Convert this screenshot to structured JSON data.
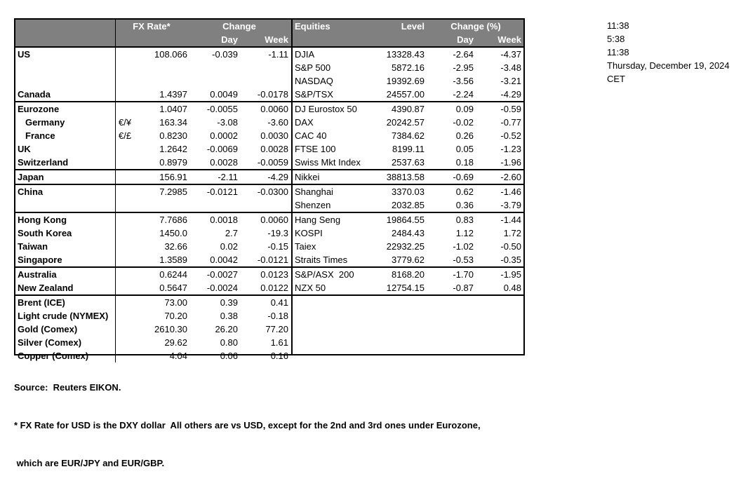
{
  "colors": {
    "bg": "#ffffff",
    "text": "#000000",
    "border": "#000000",
    "header_bg": "#808080",
    "header_text": "#ffffff"
  },
  "meta": {
    "timestamps": [
      "11:38",
      "5:38",
      "11:38",
      "Thursday, December 19, 2024",
      "CET"
    ]
  },
  "fx_table": {
    "header": {
      "rate": "FX Rate*",
      "change": "Change",
      "day": "Day",
      "week": "Week"
    },
    "rows": [
      {
        "name": "US",
        "pair": "",
        "rate": "108.066",
        "day": "-0.039",
        "week": "-1.11",
        "line_above": false,
        "indent": false
      },
      {
        "name": "",
        "pair": "",
        "rate": "",
        "day": "",
        "week": "",
        "line_above": false,
        "indent": false
      },
      {
        "name": "",
        "pair": "",
        "rate": "",
        "day": "",
        "week": "",
        "line_above": false,
        "indent": false
      },
      {
        "name": "Canada",
        "pair": "",
        "rate": "1.4397",
        "day": "0.0049",
        "week": "-0.0178",
        "line_above": false,
        "indent": false
      },
      {
        "name": "Eurozone",
        "pair": "",
        "rate": "1.0407",
        "day": "-0.0055",
        "week": "0.0060",
        "line_above": true,
        "indent": false
      },
      {
        "name": "Germany",
        "pair": "€/¥",
        "rate": "163.34",
        "day": "-3.08",
        "week": "-3.60",
        "line_above": false,
        "indent": true
      },
      {
        "name": "France",
        "pair": "€/£",
        "rate": "0.8230",
        "day": "0.0002",
        "week": "0.0030",
        "line_above": false,
        "indent": true
      },
      {
        "name": "UK",
        "pair": "",
        "rate": "1.2642",
        "day": "-0.0069",
        "week": "0.0028",
        "line_above": false,
        "indent": false
      },
      {
        "name": "Switzerland",
        "pair": "",
        "rate": "0.8979",
        "day": "0.0028",
        "week": "-0.0059",
        "line_above": false,
        "indent": false
      },
      {
        "name": "Japan",
        "pair": "",
        "rate": "156.91",
        "day": "-2.11",
        "week": "-4.29",
        "line_above": true,
        "indent": false
      },
      {
        "name": "China",
        "pair": "",
        "rate": "7.2985",
        "day": "-0.0121",
        "week": "-0.0300",
        "line_above": true,
        "indent": false
      },
      {
        "name": "",
        "pair": "",
        "rate": "",
        "day": "",
        "week": "",
        "line_above": false,
        "indent": false
      },
      {
        "name": "Hong Kong",
        "pair": "",
        "rate": "7.7686",
        "day": "0.0018",
        "week": "0.0060",
        "line_above": true,
        "indent": false
      },
      {
        "name": "South Korea",
        "pair": "",
        "rate": "1450.0",
        "day": "2.7",
        "week": "-19.3",
        "line_above": false,
        "indent": false
      },
      {
        "name": "Taiwan",
        "pair": "",
        "rate": "32.66",
        "day": "0.02",
        "week": "-0.15",
        "line_above": false,
        "indent": false
      },
      {
        "name": "Singapore",
        "pair": "",
        "rate": "1.3589",
        "day": "0.0042",
        "week": "-0.0121",
        "line_above": false,
        "indent": false
      },
      {
        "name": "Australia",
        "pair": "",
        "rate": "0.6244",
        "day": "-0.0027",
        "week": "0.0123",
        "line_above": true,
        "indent": false
      },
      {
        "name": "New Zealand",
        "pair": "",
        "rate": "0.5647",
        "day": "-0.0024",
        "week": "0.0122",
        "line_above": false,
        "indent": false
      },
      {
        "name": "Brent (ICE)",
        "pair": "",
        "rate": "73.00",
        "day": "0.39",
        "week": "0.41",
        "line_above": true,
        "indent": false
      },
      {
        "name": "Light crude (NYMEX)",
        "pair": "",
        "rate": "70.20",
        "day": "0.38",
        "week": "-0.18",
        "line_above": false,
        "indent": false
      },
      {
        "name": "Gold (Comex)",
        "pair": "",
        "rate": "2610.30",
        "day": "26.20",
        "week": "77.20",
        "line_above": false,
        "indent": false
      },
      {
        "name": "Silver (Comex)",
        "pair": "",
        "rate": "29.62",
        "day": "0.80",
        "week": "1.61",
        "line_above": false,
        "indent": false
      },
      {
        "name": "Copper (Comex)",
        "pair": "",
        "rate": "4.04",
        "day": "0.06",
        "week": "0.16",
        "line_above": false,
        "indent": false
      }
    ]
  },
  "equities_table": {
    "header": {
      "name": "Equities",
      "level": "Level",
      "change": "Change (%)",
      "day": "Day",
      "week": "Week"
    },
    "rows": [
      {
        "name": "DJIA",
        "level": "13328.43",
        "day": "-2.64",
        "week": "-4.37",
        "line_above": false
      },
      {
        "name": "S&P 500",
        "level": "5872.16",
        "day": "-2.95",
        "week": "-3.48",
        "line_above": false
      },
      {
        "name": "NASDAQ",
        "level": "19392.69",
        "day": "-3.56",
        "week": "-3.21",
        "line_above": false
      },
      {
        "name": "S&P/TSX",
        "level": "24557.00",
        "day": "-2.24",
        "week": "-4.29",
        "line_above": false
      },
      {
        "name": "DJ Eurostox 50",
        "level": "4390.87",
        "day": "0.09",
        "week": "-0.59",
        "line_above": true
      },
      {
        "name": "DAX",
        "level": "20242.57",
        "day": "-0.02",
        "week": "-0.77",
        "line_above": false
      },
      {
        "name": "CAC 40",
        "level": "7384.62",
        "day": "0.26",
        "week": "-0.52",
        "line_above": false
      },
      {
        "name": "FTSE 100",
        "level": "8199.11",
        "day": "0.05",
        "week": "-1.23",
        "line_above": false
      },
      {
        "name": "Swiss Mkt Index",
        "level": "2537.63",
        "day": "0.18",
        "week": "-1.96",
        "line_above": false
      },
      {
        "name": "Nikkei",
        "level": "38813.58",
        "day": "-0.69",
        "week": "-2.60",
        "line_above": true
      },
      {
        "name": "Shanghai",
        "level": "3370.03",
        "day": "0.62",
        "week": "-1.46",
        "line_above": true
      },
      {
        "name": "Shenzen",
        "level": "2032.85",
        "day": "0.36",
        "week": "-3.79",
        "line_above": false
      },
      {
        "name": "Hang Seng",
        "level": "19864.55",
        "day": "0.83",
        "week": "-1.44",
        "line_above": true
      },
      {
        "name": "KOSPI",
        "level": "2484.43",
        "day": "1.12",
        "week": "1.72",
        "line_above": false
      },
      {
        "name": "Taiex",
        "level": "22932.25",
        "day": "-1.02",
        "week": "-0.50",
        "line_above": false
      },
      {
        "name": "Straits Times",
        "level": "3779.62",
        "day": "-0.53",
        "week": "-0.35",
        "line_above": false
      },
      {
        "name": "S&P/ASX  200",
        "level": "8168.20",
        "day": "-1.70",
        "week": "-1.95",
        "line_above": true
      },
      {
        "name": "NZX 50",
        "level": "12754.15",
        "day": "-0.87",
        "week": "0.48",
        "line_above": false
      }
    ]
  },
  "footer": {
    "source": "Source:  Reuters EIKON.",
    "note1": "* FX Rate for USD is the DXY dollar  All others are vs USD, except for the 2nd and 3rd ones under Eurozone,",
    "note2": " which are EUR/JPY and EUR/GBP."
  }
}
